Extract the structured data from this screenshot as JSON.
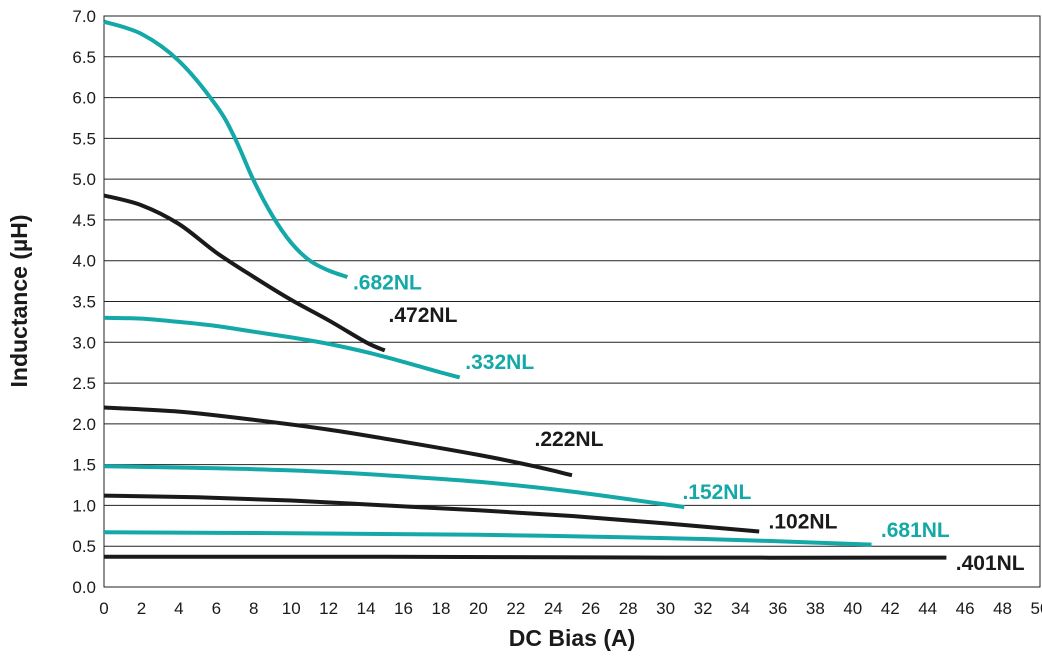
{
  "chart_data": {
    "type": "line",
    "title": "",
    "xlabel": "DC Bias (A)",
    "ylabel": "Inductance (µH)",
    "xlim": [
      0,
      50
    ],
    "ylim": [
      0,
      7
    ],
    "x_ticks": [
      "0",
      "2",
      "4",
      "6",
      "8",
      "10",
      "12",
      "14",
      "16",
      "18",
      "20",
      "22",
      "24",
      "26",
      "28",
      "30",
      "32",
      "34",
      "36",
      "38",
      "40",
      "42",
      "44",
      "46",
      "48",
      "50"
    ],
    "y_ticks": [
      "0.0",
      "0.5",
      "1.0",
      "1.5",
      "2.0",
      "2.5",
      "3.0",
      "3.5",
      "4.0",
      "4.5",
      "5.0",
      "5.5",
      "6.0",
      "6.5",
      "7.0"
    ],
    "grid": "horizontal",
    "colors": {
      "teal": "#14a8a8",
      "black": "#1a1a1a"
    },
    "series": [
      {
        "name": ".682NL",
        "color": "teal",
        "points": [
          [
            0,
            6.93
          ],
          [
            2,
            6.78
          ],
          [
            4,
            6.45
          ],
          [
            6,
            5.9
          ],
          [
            7,
            5.5
          ],
          [
            8,
            4.98
          ],
          [
            9,
            4.55
          ],
          [
            10,
            4.22
          ],
          [
            11,
            4.0
          ],
          [
            12,
            3.88
          ],
          [
            13,
            3.8
          ]
        ]
      },
      {
        "name": ".472NL",
        "color": "black",
        "points": [
          [
            0,
            4.8
          ],
          [
            2,
            4.68
          ],
          [
            4,
            4.45
          ],
          [
            6,
            4.1
          ],
          [
            8,
            3.8
          ],
          [
            10,
            3.52
          ],
          [
            12,
            3.27
          ],
          [
            14,
            3.0
          ],
          [
            15,
            2.9
          ]
        ]
      },
      {
        "name": ".332NL",
        "color": "teal",
        "points": [
          [
            0,
            3.3
          ],
          [
            2,
            3.29
          ],
          [
            4,
            3.25
          ],
          [
            6,
            3.2
          ],
          [
            8,
            3.13
          ],
          [
            10,
            3.06
          ],
          [
            12,
            2.98
          ],
          [
            14,
            2.88
          ],
          [
            16,
            2.76
          ],
          [
            18,
            2.63
          ],
          [
            19,
            2.57
          ]
        ]
      },
      {
        "name": ".222NL",
        "color": "black",
        "points": [
          [
            0,
            2.2
          ],
          [
            4,
            2.15
          ],
          [
            8,
            2.05
          ],
          [
            12,
            1.93
          ],
          [
            16,
            1.78
          ],
          [
            20,
            1.62
          ],
          [
            23,
            1.48
          ],
          [
            25,
            1.37
          ]
        ]
      },
      {
        "name": ".152NL",
        "color": "teal",
        "points": [
          [
            0,
            1.48
          ],
          [
            5,
            1.46
          ],
          [
            10,
            1.43
          ],
          [
            15,
            1.37
          ],
          [
            20,
            1.29
          ],
          [
            25,
            1.17
          ],
          [
            31,
            0.98
          ]
        ]
      },
      {
        "name": ".102NL",
        "color": "black",
        "points": [
          [
            0,
            1.12
          ],
          [
            5,
            1.1
          ],
          [
            10,
            1.06
          ],
          [
            15,
            1.0
          ],
          [
            20,
            0.94
          ],
          [
            25,
            0.87
          ],
          [
            30,
            0.78
          ],
          [
            35,
            0.68
          ]
        ]
      },
      {
        "name": ".681NL",
        "color": "teal",
        "points": [
          [
            0,
            0.67
          ],
          [
            10,
            0.66
          ],
          [
            20,
            0.64
          ],
          [
            30,
            0.6
          ],
          [
            36,
            0.56
          ],
          [
            41,
            0.52
          ]
        ]
      },
      {
        "name": ".401NL",
        "color": "black",
        "points": [
          [
            0,
            0.37
          ],
          [
            15,
            0.37
          ],
          [
            30,
            0.36
          ],
          [
            45,
            0.36
          ]
        ]
      }
    ],
    "annotations": [
      {
        "text": ".682NL",
        "color": "teal",
        "x": 13.3,
        "y": 3.65
      },
      {
        "text": ".472NL",
        "color": "black",
        "x": 15.2,
        "y": 3.25
      },
      {
        "text": ".332NL",
        "color": "teal",
        "x": 19.3,
        "y": 2.67
      },
      {
        "text": ".222NL",
        "color": "black",
        "x": 23.0,
        "y": 1.73
      },
      {
        "text": ".152NL",
        "color": "teal",
        "x": 30.9,
        "y": 1.08
      },
      {
        "text": ".102NL",
        "color": "black",
        "x": 35.5,
        "y": 0.72
      },
      {
        "text": ".681NL",
        "color": "teal",
        "x": 41.5,
        "y": 0.61
      },
      {
        "text": ".401NL",
        "color": "black",
        "x": 45.5,
        "y": 0.21
      }
    ]
  }
}
